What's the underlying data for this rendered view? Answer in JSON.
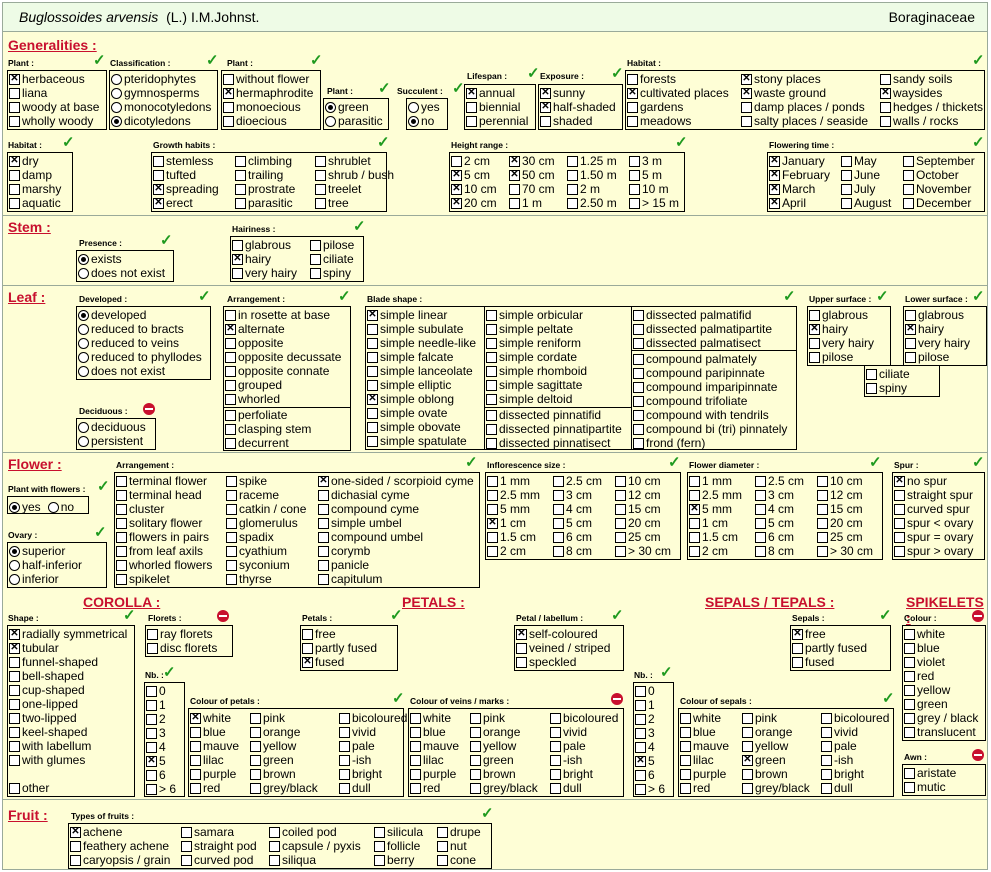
{
  "header": {
    "genus": "Buglossoides arvensis",
    "author": "(L.) I.M.Johnst.",
    "family": "Boraginaceae"
  },
  "titles": {
    "generalities": "Generalities :",
    "stem": "Stem :",
    "leaf": "Leaf :",
    "flower": "Flower :",
    "fruit": "Fruit :",
    "corolla": "COROLLA :",
    "petals": "PETALS :",
    "sepals_tepals": "SEPALS / TEPALS :",
    "spikelets": "SPIKELETS :"
  },
  "labels": {
    "plant": "Plant :",
    "classification": "Classification :",
    "plant2": "Plant :",
    "plant3": "Plant :",
    "succulent": "Succulent :",
    "lifespan": "Lifespan :",
    "exposure": "Exposure :",
    "habitat": "Habitat :",
    "habitat2": "Habitat :",
    "growth": "Growth habits :",
    "height": "Height range :",
    "flowering": "Flowering time :",
    "presence": "Presence :",
    "hairiness": "Hairiness :",
    "developed": "Developed :",
    "arrangement": "Arrangement :",
    "blade": "Blade shape :",
    "upper": "Upper surface :",
    "lower": "Lower surface :",
    "deciduous": "Deciduous :",
    "pwf": "Plant with flowers :",
    "f_arr": "Arrangement :",
    "infl": "Inflorescence size :",
    "fdia": "Flower diameter :",
    "spur": "Spur :",
    "ovary": "Ovary :",
    "shape": "Shape :",
    "florets": "Florets :",
    "petals_l": "Petals :",
    "petal_lab": "Petal / labellum :",
    "sepals_l": "Sepals :",
    "colour": "Colour :",
    "nb1": "Nb. :",
    "nb2": "Nb. :",
    "col_petals": "Colour of petals :",
    "col_veins": "Colour of veins / marks :",
    "col_sepals": "Colour of sepals :",
    "awn": "Awn :",
    "fruit_types": "Types of fruits :"
  },
  "g_plant": [
    [
      "herbaceous",
      1
    ],
    [
      "liana",
      0
    ],
    [
      "woody at base",
      0
    ],
    [
      "wholly woody",
      0
    ]
  ],
  "g_class": [
    [
      "pteridophytes",
      0
    ],
    [
      "gymnosperms",
      0
    ],
    [
      "monocotyledons",
      0
    ],
    [
      "dicotyledons",
      1
    ]
  ],
  "g_plant2": [
    [
      "without flower",
      0
    ],
    [
      "hermaphrodite",
      1
    ],
    [
      "monoecious",
      0
    ],
    [
      "dioecious",
      0
    ]
  ],
  "g_plant3": [
    [
      "green",
      1
    ],
    [
      "parasitic",
      0
    ]
  ],
  "g_succ": [
    [
      "yes",
      0
    ],
    [
      "no",
      1
    ]
  ],
  "g_life": [
    [
      "annual",
      1
    ],
    [
      "biennial",
      0
    ],
    [
      "perennial",
      0
    ]
  ],
  "g_expo": [
    [
      "sunny",
      1
    ],
    [
      "half-shaded",
      1
    ],
    [
      "shaded",
      0
    ]
  ],
  "g_hab_a": [
    [
      "forests",
      0
    ],
    [
      "cultivated places",
      1
    ],
    [
      "gardens",
      0
    ],
    [
      "meadows",
      0
    ]
  ],
  "g_hab_b": [
    [
      "stony places",
      1
    ],
    [
      "waste ground",
      1
    ],
    [
      "damp places / ponds",
      0
    ],
    [
      "salty places / seaside",
      0
    ]
  ],
  "g_hab_c": [
    [
      "sandy soils",
      0
    ],
    [
      "waysides",
      1
    ],
    [
      "hedges / thickets",
      0
    ],
    [
      "walls / rocks",
      0
    ]
  ],
  "g_hab2": [
    [
      "dry",
      1
    ],
    [
      "damp",
      0
    ],
    [
      "marshy",
      0
    ],
    [
      "aquatic",
      0
    ]
  ],
  "g_gr_a": [
    [
      "stemless",
      0
    ],
    [
      "tufted",
      0
    ],
    [
      "spreading",
      1
    ],
    [
      "erect",
      1
    ]
  ],
  "g_gr_b": [
    [
      "climbing",
      0
    ],
    [
      "trailing",
      0
    ],
    [
      "prostrate",
      0
    ],
    [
      "parasitic",
      0
    ]
  ],
  "g_gr_c": [
    [
      "shrublet",
      0
    ],
    [
      "shrub / bush",
      0
    ],
    [
      "treelet",
      0
    ],
    [
      "tree",
      0
    ]
  ],
  "g_h_a": [
    [
      "2 cm",
      0
    ],
    [
      "5 cm",
      1
    ],
    [
      "10 cm",
      1
    ],
    [
      "20 cm",
      1
    ]
  ],
  "g_h_b": [
    [
      "30 cm",
      1
    ],
    [
      "50 cm",
      1
    ],
    [
      "70 cm",
      0
    ],
    [
      "1 m",
      0
    ]
  ],
  "g_h_c": [
    [
      "1.25 m",
      0
    ],
    [
      "1.50 m",
      0
    ],
    [
      "2 m",
      0
    ],
    [
      "2.50 m",
      0
    ]
  ],
  "g_h_d": [
    [
      "3 m",
      0
    ],
    [
      "5 m",
      0
    ],
    [
      "10 m",
      0
    ],
    [
      "> 15 m",
      0
    ]
  ],
  "g_fl_a": [
    [
      "January",
      1
    ],
    [
      "February",
      1
    ],
    [
      "March",
      1
    ],
    [
      "April",
      1
    ]
  ],
  "g_fl_b": [
    [
      "May",
      0
    ],
    [
      "June",
      0
    ],
    [
      "July",
      0
    ],
    [
      "August",
      0
    ]
  ],
  "g_fl_c": [
    [
      "September",
      0
    ],
    [
      "October",
      0
    ],
    [
      "November",
      0
    ],
    [
      "December",
      0
    ]
  ],
  "s_pres": [
    [
      "exists",
      1
    ],
    [
      "does not exist",
      0
    ]
  ],
  "s_hair_a": [
    [
      "glabrous",
      0
    ],
    [
      "hairy",
      1
    ],
    [
      "very hairy",
      0
    ]
  ],
  "s_hair_b": [
    [
      "pilose",
      0
    ],
    [
      "ciliate",
      0
    ],
    [
      "spiny",
      0
    ]
  ],
  "l_dev": [
    [
      "developed",
      1
    ],
    [
      "reduced to bracts",
      0
    ],
    [
      "reduced to veins",
      0
    ],
    [
      "reduced to phyllodes",
      0
    ],
    [
      "does not exist",
      0
    ]
  ],
  "l_decid": [
    [
      "deciduous",
      0
    ],
    [
      "persistent",
      0
    ]
  ],
  "l_arr_a": [
    [
      "in rosette at base",
      0
    ],
    [
      "alternate",
      1
    ],
    [
      "opposite",
      0
    ],
    [
      "opposite decussate",
      0
    ],
    [
      "opposite connate",
      0
    ],
    [
      "grouped",
      0
    ],
    [
      "whorled",
      0
    ]
  ],
  "l_arr_b": [
    [
      "perfoliate",
      0
    ],
    [
      "clasping stem",
      0
    ],
    [
      "decurrent",
      0
    ]
  ],
  "l_bl_a": [
    [
      "simple linear",
      1
    ],
    [
      "simple subulate",
      0
    ],
    [
      "simple needle-like",
      0
    ],
    [
      "simple falcate",
      0
    ],
    [
      "simple lanceolate",
      0
    ],
    [
      "simple elliptic",
      0
    ],
    [
      "simple oblong",
      1
    ],
    [
      "simple ovate",
      0
    ],
    [
      "simple obovate",
      0
    ],
    [
      "simple spatulate",
      0
    ]
  ],
  "l_bl_b": [
    [
      "simple orbicular",
      0
    ],
    [
      "simple peltate",
      0
    ],
    [
      "simple reniform",
      0
    ],
    [
      "simple cordate",
      0
    ],
    [
      "simple rhomboid",
      0
    ],
    [
      "simple sagittate",
      0
    ],
    [
      "simple deltoid",
      0
    ]
  ],
  "l_bl_c": [
    [
      "dissected pinnatifid",
      0
    ],
    [
      "dissected pinnatipartite",
      0
    ],
    [
      "dissected pinnatisect",
      0
    ]
  ],
  "l_bl_d": [
    [
      "dissected palmatifid",
      0
    ],
    [
      "dissected palmatipartite",
      0
    ],
    [
      "dissected palmatisect",
      0
    ]
  ],
  "l_bl_e": [
    [
      "compound palmately",
      0
    ],
    [
      "compound paripinnate",
      0
    ],
    [
      "compound imparipinnate",
      0
    ],
    [
      "compound trifoliate",
      0
    ],
    [
      "compound with tendrils",
      0
    ],
    [
      "compound bi (tri) pinnately",
      0
    ],
    [
      "frond  (fern)",
      0
    ]
  ],
  "l_up": [
    [
      "glabrous",
      0
    ],
    [
      "hairy",
      1
    ],
    [
      "very hairy",
      0
    ],
    [
      "pilose",
      0
    ]
  ],
  "l_low": [
    [
      "glabrous",
      0
    ],
    [
      "hairy",
      1
    ],
    [
      "very hairy",
      0
    ],
    [
      "pilose",
      0
    ]
  ],
  "l_cs": [
    [
      "ciliate",
      0
    ],
    [
      "spiny",
      0
    ]
  ],
  "f_pwf": [
    [
      "yes",
      1
    ],
    [
      "no",
      0
    ]
  ],
  "f_ovary": [
    [
      "superior",
      1
    ],
    [
      "half-inferior",
      0
    ],
    [
      "inferior",
      0
    ]
  ],
  "f_arr_a": [
    [
      "terminal flower",
      0
    ],
    [
      "terminal head",
      0
    ],
    [
      "cluster",
      0
    ],
    [
      "solitary flower",
      0
    ],
    [
      "flowers in pairs",
      0
    ],
    [
      "from leaf axils",
      0
    ],
    [
      "whorled flowers",
      0
    ],
    [
      "spikelet",
      0
    ]
  ],
  "f_arr_b": [
    [
      "spike",
      0
    ],
    [
      "raceme",
      0
    ],
    [
      "catkin / cone",
      0
    ],
    [
      "glomerulus",
      0
    ],
    [
      "spadix",
      0
    ],
    [
      "cyathium",
      0
    ],
    [
      "syconium",
      0
    ],
    [
      "thyrse",
      0
    ]
  ],
  "f_arr_c": [
    [
      "one-sided / scorpioid cyme",
      1
    ],
    [
      "dichasial cyme",
      0
    ],
    [
      "compound cyme",
      0
    ],
    [
      "simple umbel",
      0
    ],
    [
      "compound umbel",
      0
    ],
    [
      "corymb",
      0
    ],
    [
      "panicle",
      0
    ],
    [
      "capitulum",
      0
    ]
  ],
  "f_inf_a": [
    [
      "1 mm",
      0
    ],
    [
      "2.5 mm",
      0
    ],
    [
      "5 mm",
      0
    ],
    [
      "1 cm",
      1
    ],
    [
      "1.5 cm",
      0
    ],
    [
      "2 cm",
      0
    ]
  ],
  "f_inf_b": [
    [
      "2.5 cm",
      0
    ],
    [
      "3 cm",
      0
    ],
    [
      "4 cm",
      0
    ],
    [
      "5 cm",
      0
    ],
    [
      "6 cm",
      0
    ],
    [
      "8 cm",
      0
    ]
  ],
  "f_inf_c": [
    [
      "10 cm",
      0
    ],
    [
      "12 cm",
      0
    ],
    [
      "15 cm",
      0
    ],
    [
      "20 cm",
      0
    ],
    [
      "25 cm",
      0
    ],
    [
      "> 30 cm",
      0
    ]
  ],
  "f_dia_a": [
    [
      "1 mm",
      0
    ],
    [
      "2.5 mm",
      0
    ],
    [
      "5 mm",
      1
    ],
    [
      "1 cm",
      0
    ],
    [
      "1.5 cm",
      0
    ],
    [
      "2 cm",
      0
    ]
  ],
  "f_dia_b": [
    [
      "2.5 cm",
      0
    ],
    [
      "3 cm",
      0
    ],
    [
      "4 cm",
      0
    ],
    [
      "5 cm",
      0
    ],
    [
      "6 cm",
      0
    ],
    [
      "8 cm",
      0
    ]
  ],
  "f_dia_c": [
    [
      "10 cm",
      0
    ],
    [
      "12 cm",
      0
    ],
    [
      "15 cm",
      0
    ],
    [
      "20 cm",
      0
    ],
    [
      "25 cm",
      0
    ],
    [
      "> 30 cm",
      0
    ]
  ],
  "f_spur": [
    [
      "no spur",
      1
    ],
    [
      "straight spur",
      0
    ],
    [
      "curved spur",
      0
    ],
    [
      "spur < ovary",
      0
    ],
    [
      "spur = ovary",
      0
    ],
    [
      "spur > ovary",
      0
    ]
  ],
  "c_shape": [
    [
      "radially symmetrical",
      1
    ],
    [
      "tubular",
      1
    ],
    [
      "funnel-shaped",
      0
    ],
    [
      "bell-shaped",
      0
    ],
    [
      "cup-shaped",
      0
    ],
    [
      "one-lipped",
      0
    ],
    [
      "two-lipped",
      0
    ],
    [
      "keel-shaped",
      0
    ],
    [
      "with labellum",
      0
    ],
    [
      "with glumes",
      0
    ]
  ],
  "c_other": [
    [
      "other",
      0
    ]
  ],
  "c_florets": [
    [
      "ray florets",
      0
    ],
    [
      "disc florets",
      0
    ]
  ],
  "nb1": [
    [
      "0",
      0
    ],
    [
      "1",
      0
    ],
    [
      "2",
      0
    ],
    [
      "3",
      0
    ],
    [
      "4",
      0
    ],
    [
      "5",
      1
    ],
    [
      "6",
      0
    ],
    [
      "> 6",
      0
    ]
  ],
  "p_petals": [
    [
      "free",
      0
    ],
    [
      "partly fused",
      0
    ],
    [
      "fused",
      1
    ]
  ],
  "p_lab": [
    [
      "self-coloured",
      1
    ],
    [
      "veined / striped",
      0
    ],
    [
      "speckled",
      0
    ]
  ],
  "cp_a": [
    [
      "white",
      1
    ],
    [
      "blue",
      0
    ],
    [
      "mauve",
      0
    ],
    [
      "lilac",
      0
    ],
    [
      "purple",
      0
    ],
    [
      "red",
      0
    ]
  ],
  "cp_b": [
    [
      "pink",
      0
    ],
    [
      "orange",
      0
    ],
    [
      "yellow",
      0
    ],
    [
      "green",
      0
    ],
    [
      "brown",
      0
    ],
    [
      "grey/black",
      0
    ]
  ],
  "cp_c": [
    [
      "bicoloured",
      0
    ],
    [
      "vivid",
      0
    ],
    [
      "pale",
      0
    ],
    [
      "-ish",
      0
    ],
    [
      "bright",
      0
    ],
    [
      "dull",
      0
    ]
  ],
  "cv_a": [
    [
      "white",
      0
    ],
    [
      "blue",
      0
    ],
    [
      "mauve",
      0
    ],
    [
      "lilac",
      0
    ],
    [
      "purple",
      0
    ],
    [
      "red",
      0
    ]
  ],
  "cv_b": [
    [
      "pink",
      0
    ],
    [
      "orange",
      0
    ],
    [
      "yellow",
      0
    ],
    [
      "green",
      0
    ],
    [
      "brown",
      0
    ],
    [
      "grey/black",
      0
    ]
  ],
  "cv_c": [
    [
      "bicoloured",
      0
    ],
    [
      "vivid",
      0
    ],
    [
      "pale",
      0
    ],
    [
      "-ish",
      0
    ],
    [
      "bright",
      0
    ],
    [
      "dull",
      0
    ]
  ],
  "nb2": [
    [
      "0",
      0
    ],
    [
      "1",
      0
    ],
    [
      "2",
      0
    ],
    [
      "3",
      0
    ],
    [
      "4",
      0
    ],
    [
      "5",
      1
    ],
    [
      "6",
      0
    ],
    [
      "> 6",
      0
    ]
  ],
  "se_sep": [
    [
      "free",
      1
    ],
    [
      "partly fused",
      0
    ],
    [
      "fused",
      0
    ]
  ],
  "cs_a": [
    [
      "white",
      0
    ],
    [
      "blue",
      0
    ],
    [
      "mauve",
      0
    ],
    [
      "lilac",
      0
    ],
    [
      "purple",
      0
    ],
    [
      "red",
      0
    ]
  ],
  "cs_b": [
    [
      "pink",
      0
    ],
    [
      "orange",
      0
    ],
    [
      "yellow",
      0
    ],
    [
      "green",
      1
    ],
    [
      "brown",
      0
    ],
    [
      "grey/black",
      0
    ]
  ],
  "cs_c": [
    [
      "bicoloured",
      0
    ],
    [
      "vivid",
      0
    ],
    [
      "pale",
      0
    ],
    [
      "-ish",
      0
    ],
    [
      "bright",
      0
    ],
    [
      "dull",
      0
    ]
  ],
  "sk_col": [
    [
      "white",
      0
    ],
    [
      "blue",
      0
    ],
    [
      "violet",
      0
    ],
    [
      "red",
      0
    ],
    [
      "yellow",
      0
    ],
    [
      "green",
      0
    ],
    [
      "grey / black",
      0
    ],
    [
      "translucent",
      0
    ]
  ],
  "sk_awn": [
    [
      "aristate",
      0
    ],
    [
      "mutic",
      0
    ]
  ],
  "fr_a": [
    [
      "achene",
      1
    ],
    [
      "feathery achene",
      0
    ],
    [
      "caryopsis / grain",
      0
    ]
  ],
  "fr_b": [
    [
      "samara",
      0
    ],
    [
      "straight pod",
      0
    ],
    [
      "curved pod",
      0
    ]
  ],
  "fr_c": [
    [
      "coiled pod",
      0
    ],
    [
      "capsule / pyxis",
      0
    ],
    [
      "siliqua",
      0
    ]
  ],
  "fr_d": [
    [
      "silicula",
      0
    ],
    [
      "follicle",
      0
    ],
    [
      "berry",
      0
    ]
  ],
  "fr_e": [
    [
      "drupe",
      0
    ],
    [
      "nut",
      0
    ],
    [
      "cone",
      0
    ]
  ]
}
